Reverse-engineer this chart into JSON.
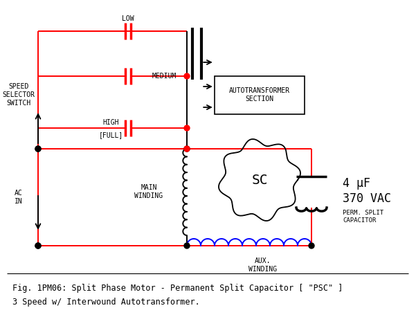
{
  "background_color": "#ffffff",
  "title_line1": "Fig. 1PM06: Split Phase Motor - Permanent Split Capacitor [ \"PSC\" ]",
  "title_line2": "3 Speed w/ Interwound Autotransformer.",
  "line_color_black": "#000000",
  "line_color_red": "#ff0000",
  "line_color_blue": "#0000ff",
  "label_low": "LOW",
  "label_medium": "MEDIUM",
  "label_high": "HIGH\n[FULL]",
  "label_speed": "SPEED\nSELECTOR\nSWITCH",
  "label_main": "MAIN\nWINDING",
  "label_aux": "AUX.\nWINDING",
  "label_ac": "AC\nIN",
  "label_auto": "AUTOTRANSFORMER\nSECTION",
  "label_sc": "SC",
  "cap_label1": "4 μF",
  "cap_label2": "370 VAC",
  "cap_label3": "PERM. SPLIT\nCAPACITOR",
  "font_family": "monospace"
}
